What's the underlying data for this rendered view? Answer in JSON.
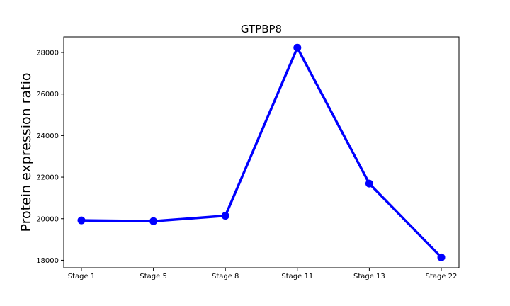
{
  "chart_data": {
    "type": "line",
    "title": "GTPBP8",
    "xlabel": "",
    "ylabel": "Protein expression ratio",
    "categories": [
      "Stage 1",
      "Stage 5",
      "Stage 8",
      "Stage 11",
      "Stage 13",
      "Stage 22"
    ],
    "series": [
      {
        "values": [
          19920,
          19880,
          20140,
          28230,
          21690,
          18140
        ],
        "color": "#0000ff"
      }
    ],
    "yticks": [
      18000,
      20000,
      22000,
      24000,
      26000,
      28000
    ],
    "ytick_labels": [
      "18000",
      "20000",
      "22000",
      "24000",
      "26000",
      "28000"
    ],
    "ylim": [
      17640,
      28750
    ],
    "grid": false,
    "legend": "none"
  }
}
